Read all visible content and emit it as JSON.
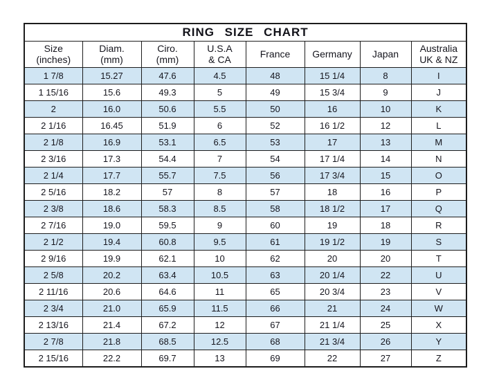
{
  "chart_data": {
    "type": "table",
    "title": "RING  SIZE  CHART",
    "columns": [
      "Size (inches)",
      "Diam. (mm)",
      "Ciro. (mm)",
      "U.S.A & CA",
      "France",
      "Germany",
      "Japan",
      "Australia UK & NZ"
    ],
    "rows": [
      [
        "1 7/8",
        "15.27",
        "47.6",
        "4.5",
        "48",
        "15 1/4",
        "8",
        "I"
      ],
      [
        "1 15/16",
        "15.6",
        "49.3",
        "5",
        "49",
        "15 3/4",
        "9",
        "J"
      ],
      [
        "2",
        "16.0",
        "50.6",
        "5.5",
        "50",
        "16",
        "10",
        "K"
      ],
      [
        "2 1/16",
        "16.45",
        "51.9",
        "6",
        "52",
        "16 1/2",
        "12",
        "L"
      ],
      [
        "2 1/8",
        "16.9",
        "53.1",
        "6.5",
        "53",
        "17",
        "13",
        "M"
      ],
      [
        "2 3/16",
        "17.3",
        "54.4",
        "7",
        "54",
        "17 1/4",
        "14",
        "N"
      ],
      [
        "2 1/4",
        "17.7",
        "55.7",
        "7.5",
        "56",
        "17 3/4",
        "15",
        "O"
      ],
      [
        "2 5/16",
        "18.2",
        "57",
        "8",
        "57",
        "18",
        "16",
        "P"
      ],
      [
        "2 3/8",
        "18.6",
        "58.3",
        "8.5",
        "58",
        "18 1/2",
        "17",
        "Q"
      ],
      [
        "2 7/16",
        "19.0",
        "59.5",
        "9",
        "60",
        "19",
        "18",
        "R"
      ],
      [
        "2 1/2",
        "19.4",
        "60.8",
        "9.5",
        "61",
        "19 1/2",
        "19",
        "S"
      ],
      [
        "2 9/16",
        "19.9",
        "62.1",
        "10",
        "62",
        "20",
        "20",
        "T"
      ],
      [
        "2 5/8",
        "20.2",
        "63.4",
        "10.5",
        "63",
        "20 1/4",
        "22",
        "U"
      ],
      [
        "2 11/16",
        "20.6",
        "64.6",
        "11",
        "65",
        "20 3/4",
        "23",
        "V"
      ],
      [
        "2 3/4",
        "21.0",
        "65.9",
        "11.5",
        "66",
        "21",
        "24",
        "W"
      ],
      [
        "2 13/16",
        "21.4",
        "67.2",
        "12",
        "67",
        "21 1/4",
        "25",
        "X"
      ],
      [
        "2 7/8",
        "21.8",
        "68.5",
        "12.5",
        "68",
        "21 3/4",
        "26",
        "Y"
      ],
      [
        "2 15/16",
        "22.2",
        "69.7",
        "13",
        "69",
        "22",
        "27",
        "Z"
      ]
    ]
  },
  "table": {
    "headers": [
      "Size\n(inches)",
      "Diam.\n(mm)",
      "Ciro.\n(mm)",
      "U.S.A\n& CA",
      "France",
      "Germany",
      "Japan",
      "Australia\nUK & NZ"
    ]
  },
  "colors": {
    "stripe_blue": "#d0e5f3",
    "grid_border": "#1c1c1c",
    "text": "#15151d",
    "background": "#ffffff"
  }
}
